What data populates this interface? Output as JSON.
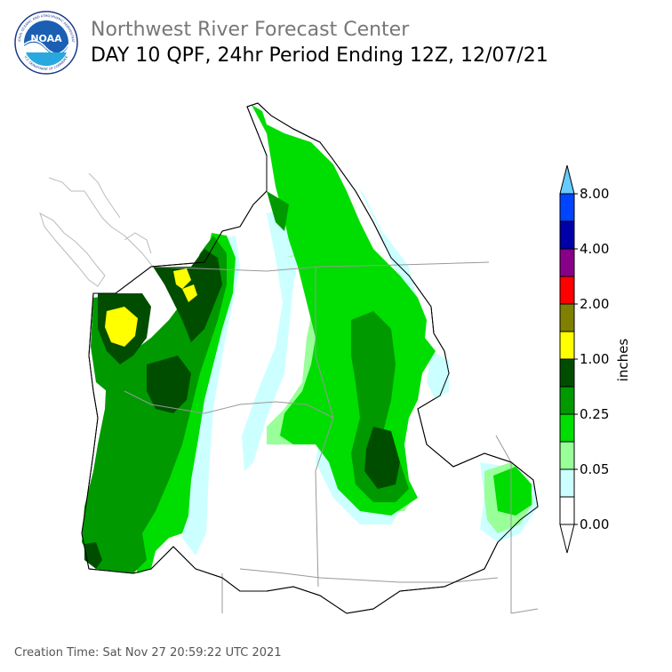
{
  "header": {
    "org": "Northwest River Forecast Center",
    "title": "DAY 10 QPF, 24hr Period Ending 12Z, 12/07/21"
  },
  "logo": {
    "name": "noaa-logo",
    "center_text": "NOAA",
    "ring_top": "NATIONAL OCEANIC AND ATMOSPHERIC ADMINISTRATION",
    "ring_bottom": "U.S. DEPARTMENT OF COMMERCE"
  },
  "legend": {
    "unit_label": "inches",
    "tick_labels": [
      "8.00",
      "4.00",
      "2.00",
      "1.00",
      "0.25",
      "0.05",
      "0.00"
    ],
    "colors": [
      "#ffffff",
      "#ccffff",
      "#99ff99",
      "#00dd00",
      "#009900",
      "#004d00",
      "#ffff00",
      "#808000",
      "#ff0000",
      "#880088",
      "#0000aa",
      "#0044ff",
      "#66ccff"
    ]
  },
  "map": {
    "region": "Pacific Northwest / Columbia River Basin",
    "precip_colors": {
      "none": "#ffffff",
      "very_light": "#ccffff",
      "light": "#99ff99",
      "moderate": "#00dd00",
      "heavy": "#009900",
      "very_heavy": "#004d00",
      "extreme": "#ffff00"
    }
  },
  "footer": {
    "creation_time": "Creation Time: Sat Nov 27 20:59:22 UTC 2021"
  }
}
